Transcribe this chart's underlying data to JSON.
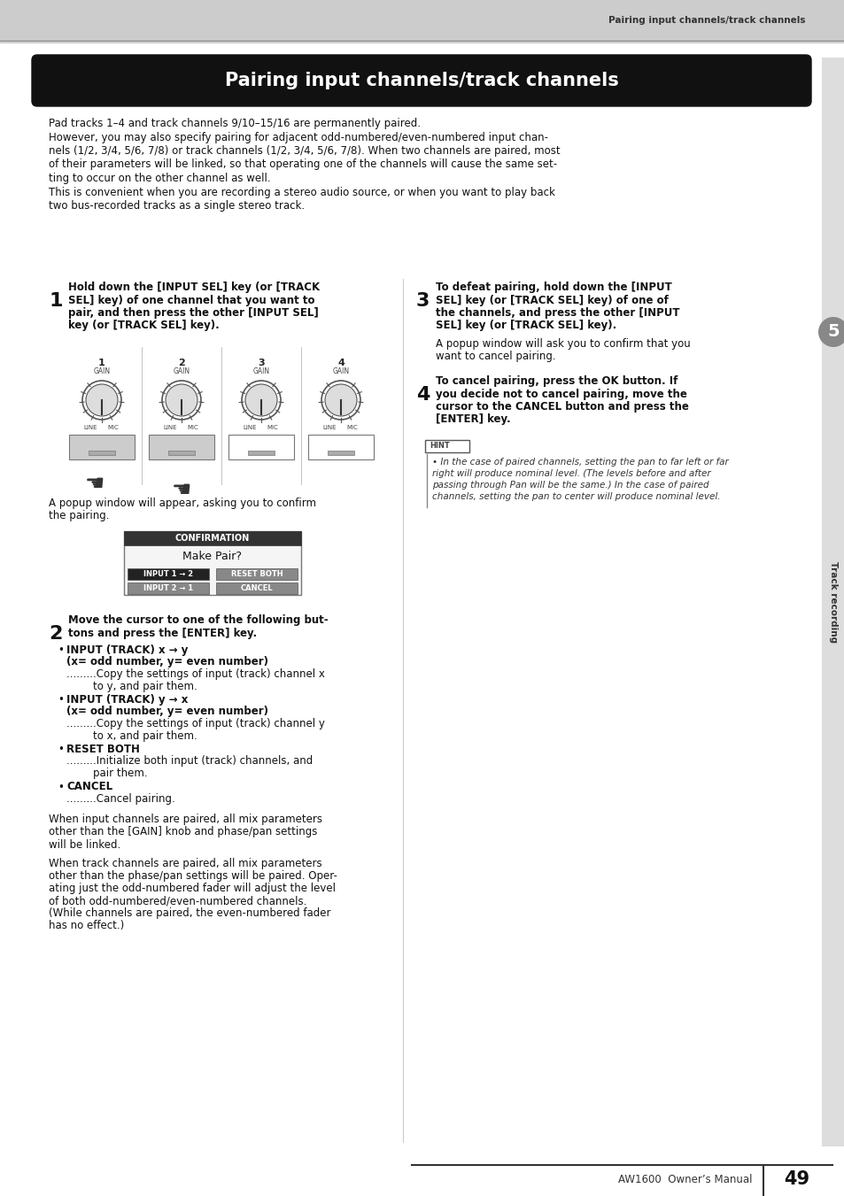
{
  "page_bg": "#ffffff",
  "header_bg": "#cccccc",
  "header_text": "Pairing input channels/track channels",
  "title_text": "Pairing input channels/track channels",
  "footer_text": "AW1600  Owner’s Manual",
  "footer_page": "49",
  "sidebar_label": "Track recording",
  "sidebar_chapter": "5",
  "intro_text": [
    "Pad tracks 1–4 and track channels 9/10–15/16 are permanently paired.",
    "However, you may also specify pairing for adjacent odd-numbered/even-numbered input chan-",
    "nels (1/2, 3/4, 5/6, 7/8) or track channels (1/2, 3/4, 5/6, 7/8). When two channels are paired, most",
    "of their parameters will be linked, so that operating one of the channels will cause the same set-",
    "ting to occur on the other channel as well.",
    "This is convenient when you are recording a stereo audio source, or when you want to play back",
    "two bus-recorded tracks as a single stereo track."
  ],
  "step1_text": [
    "Hold down the [INPUT SEL] key (or [TRACK",
    "SEL] key) of one channel that you want to",
    "pair, and then press the other [INPUT SEL]",
    "key (or [TRACK SEL] key)."
  ],
  "step1_sub": [
    "A popup window will appear, asking you to confirm",
    "the pairing."
  ],
  "step2_text": [
    "Move the cursor to one of the following but-",
    "tons and press the [ENTER] key."
  ],
  "step3_text": [
    "To defeat pairing, hold down the [INPUT",
    "SEL] key (or [TRACK SEL] key) of one of",
    "the channels, and press the other [INPUT",
    "SEL] key (or [TRACK SEL] key)."
  ],
  "step3_sub": [
    "A popup window will ask you to confirm that you",
    "want to cancel pairing."
  ],
  "step4_text": [
    "To cancel pairing, press the OK button. If",
    "you decide not to cancel pairing, move the",
    "cursor to the CANCEL button and press the",
    "[ENTER] key."
  ],
  "hint_lines": [
    "• In the case of paired channels, setting the pan to far left or far",
    "right will produce nominal level. (The levels before and after",
    "passing through Pan will be the same.) In the case of paired",
    "channels, setting the pan to center will produce nominal level."
  ],
  "after_text": [
    "When input channels are paired, all mix parameters",
    "other than the [GAIN] knob and phase/pan settings",
    "will be linked.",
    "",
    "When track channels are paired, all mix parameters",
    "other than the phase/pan settings will be paired. Oper-",
    "ating just the odd-numbered fader will adjust the level",
    "of both odd-numbered/even-numbered channels.",
    "(While channels are paired, the even-numbered fader",
    "has no effect.)"
  ]
}
